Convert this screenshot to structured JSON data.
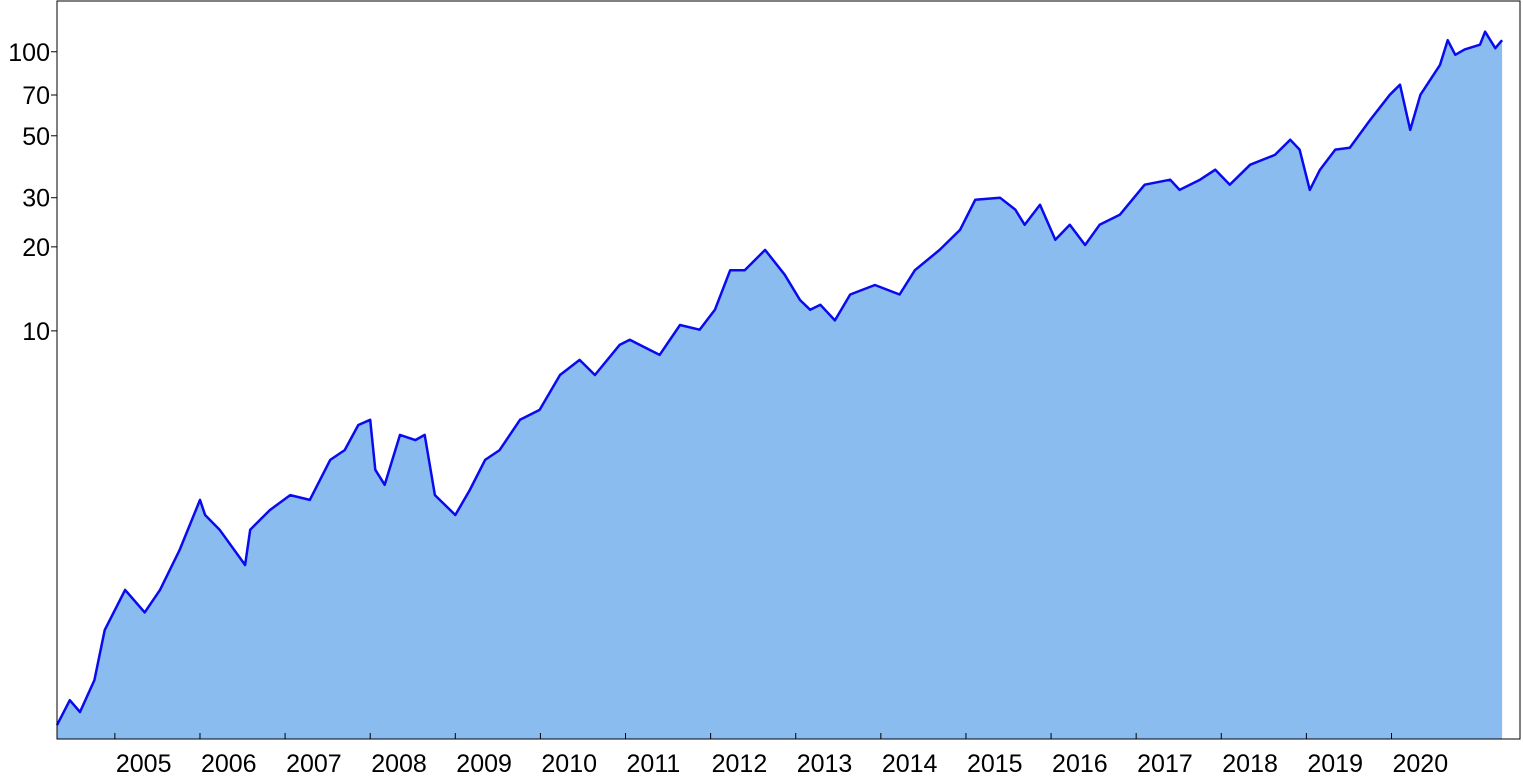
{
  "chart_data": {
    "type": "area",
    "log_y": true,
    "xlim": [
      2004.32,
      2021.51
    ],
    "ylim": [
      0.345,
      152
    ],
    "xticks": [
      2005,
      2006,
      2007,
      2008,
      2009,
      2010,
      2011,
      2012,
      2013,
      2014,
      2015,
      2016,
      2017,
      2018,
      2019,
      2020
    ],
    "yticks": [
      10,
      20,
      30,
      50,
      70,
      100
    ],
    "x": [
      2004.32,
      2004.47,
      2004.59,
      2004.76,
      2004.88,
      2005.12,
      2005.35,
      2005.53,
      2005.76,
      2006.0,
      2006.06,
      2006.23,
      2006.53,
      2006.59,
      2006.82,
      2007.06,
      2007.29,
      2007.53,
      2007.7,
      2007.86,
      2008.0,
      2008.06,
      2008.17,
      2008.35,
      2008.53,
      2008.64,
      2008.76,
      2009.0,
      2009.17,
      2009.35,
      2009.52,
      2009.76,
      2009.99,
      2010.23,
      2010.46,
      2010.64,
      2010.93,
      2011.05,
      2011.4,
      2011.64,
      2011.87,
      2012.05,
      2012.23,
      2012.4,
      2012.64,
      2012.87,
      2013.05,
      2013.17,
      2013.29,
      2013.46,
      2013.64,
      2013.93,
      2014.22,
      2014.4,
      2014.69,
      2014.93,
      2015.11,
      2015.4,
      2015.58,
      2015.69,
      2015.87,
      2016.05,
      2016.22,
      2016.4,
      2016.57,
      2016.81,
      2017.1,
      2017.4,
      2017.51,
      2017.75,
      2017.93,
      2018.1,
      2018.34,
      2018.63,
      2018.81,
      2018.92,
      2019.04,
      2019.16,
      2019.34,
      2019.51,
      2019.75,
      2019.98,
      2020.1,
      2020.22,
      2020.34,
      2020.57,
      2020.66,
      2020.75,
      2020.86,
      2021.04,
      2021.1,
      2021.22,
      2021.3
    ],
    "series": [
      {
        "color": "#0a0aee",
        "fill": "#8bbcf0",
        "values": [
          0.387,
          0.475,
          0.431,
          0.561,
          0.847,
          1.18,
          0.98,
          1.18,
          1.64,
          2.48,
          2.19,
          1.94,
          1.45,
          1.94,
          2.28,
          2.58,
          2.48,
          3.45,
          3.74,
          4.6,
          4.8,
          3.18,
          2.81,
          4.24,
          4.06,
          4.24,
          2.58,
          2.19,
          2.69,
          3.45,
          3.74,
          4.8,
          5.21,
          6.95,
          7.87,
          6.95,
          8.91,
          9.29,
          8.2,
          10.5,
          10.1,
          11.9,
          16.5,
          16.5,
          19.5,
          15.9,
          12.9,
          11.9,
          12.4,
          10.9,
          13.5,
          14.6,
          13.5,
          16.5,
          19.5,
          23.0,
          29.5,
          30.0,
          27.2,
          24.0,
          28.3,
          21.2,
          24.0,
          20.3,
          24.0,
          26.1,
          33.4,
          34.8,
          32.0,
          34.8,
          37.8,
          33.4,
          39.4,
          42.7,
          48.4,
          44.6,
          32.0,
          37.8,
          44.6,
          45.3,
          57.0,
          70.1,
          76.2,
          52.5,
          70.1,
          89.7,
          110,
          97.5,
          102,
          106,
          118,
          103,
          110
        ]
      }
    ]
  }
}
